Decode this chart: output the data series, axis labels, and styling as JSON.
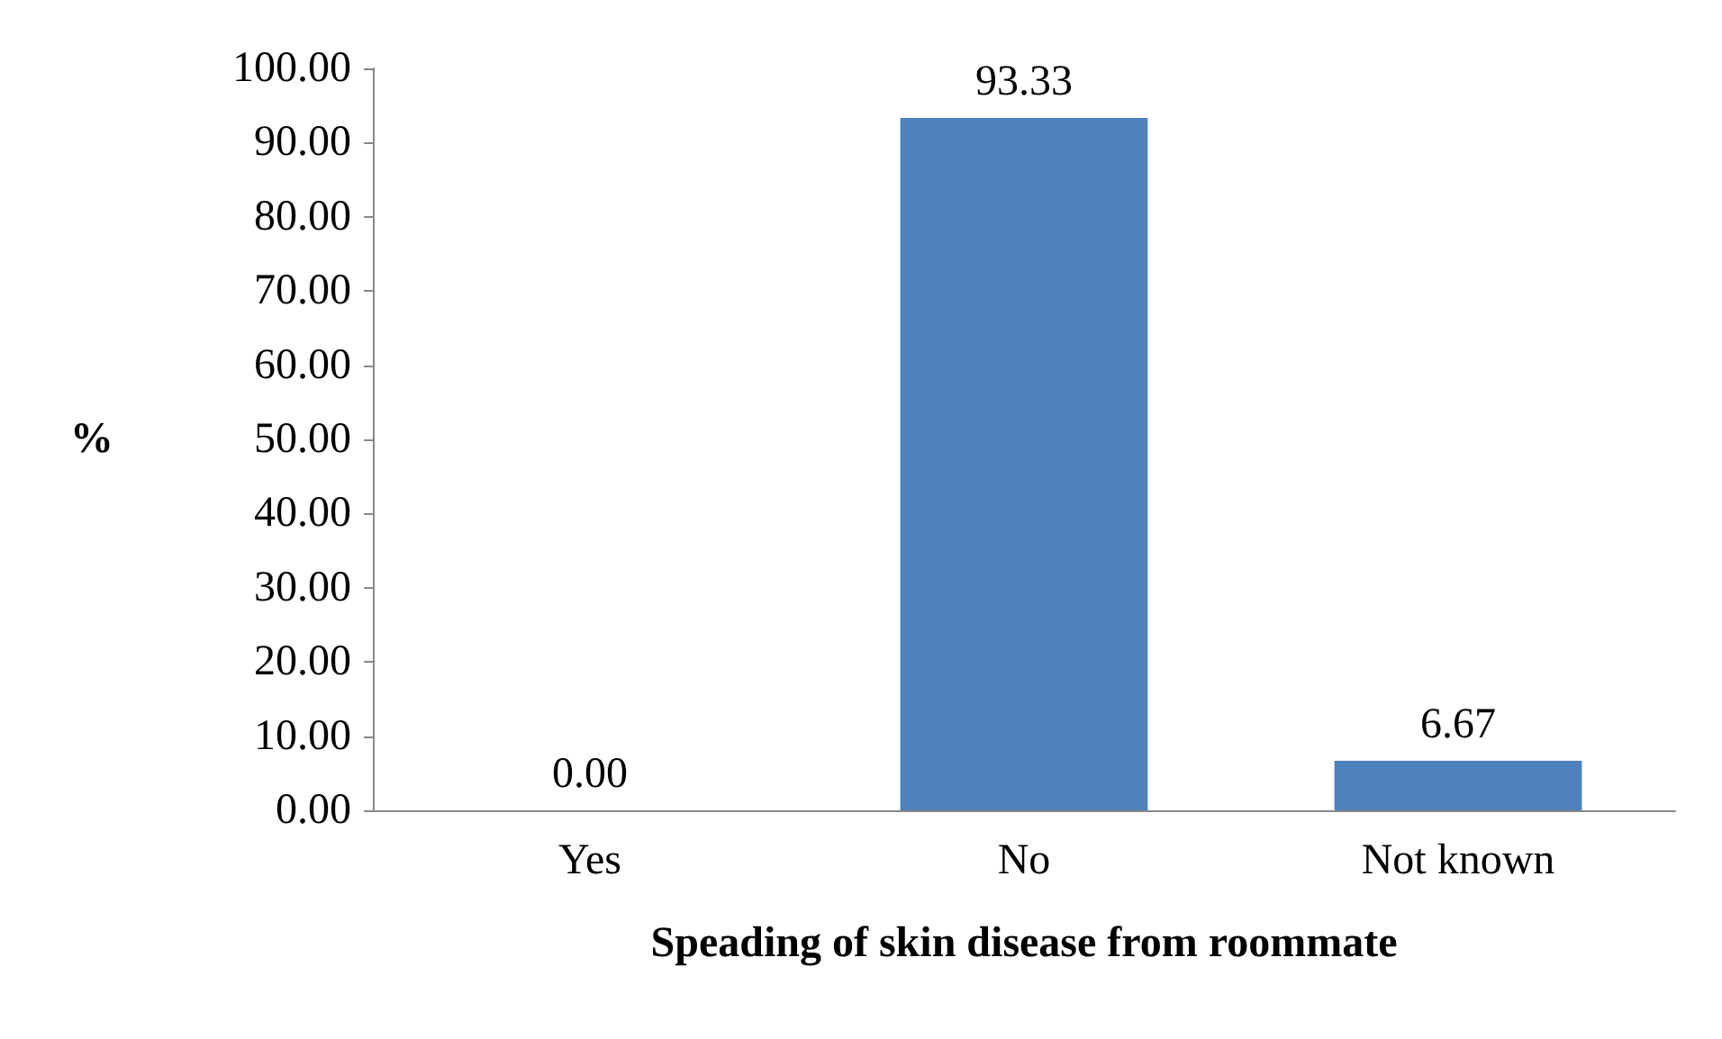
{
  "chart_data": {
    "type": "bar",
    "xlabel": "Speading of skin disease from roommate",
    "ylabel": "%",
    "categories": [
      "Yes",
      "No",
      "Not known"
    ],
    "values": [
      0,
      93.33,
      6.67
    ],
    "value_labels": [
      "0.00",
      "93.33",
      "6.67"
    ],
    "color": "#4f81bd",
    "ylim": [
      0,
      100
    ],
    "yticks": [
      {
        "value": 0,
        "label": "0.00"
      },
      {
        "value": 10,
        "label": "10.00"
      },
      {
        "value": 20,
        "label": "20.00"
      },
      {
        "value": 30,
        "label": "30.00"
      },
      {
        "value": 40,
        "label": "40.00"
      },
      {
        "value": 50,
        "label": "50.00"
      },
      {
        "value": 60,
        "label": "60.00"
      },
      {
        "value": 70,
        "label": "70.00"
      },
      {
        "value": 80,
        "label": "80.00"
      },
      {
        "value": 90,
        "label": "90.00"
      },
      {
        "value": 100,
        "label": "100.00"
      }
    ],
    "grid": false
  }
}
